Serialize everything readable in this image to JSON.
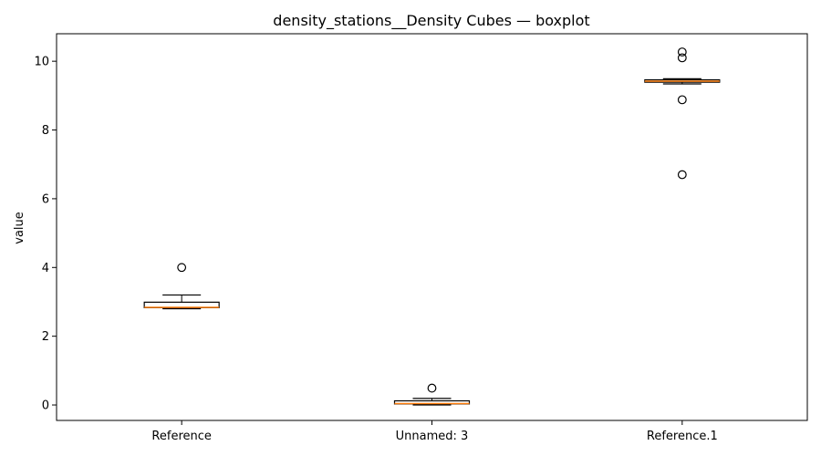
{
  "chart_data": {
    "type": "boxplot",
    "title": "density_stations__Density Cubes — boxplot",
    "xlabel": "",
    "ylabel": "value",
    "ylim": [
      -0.45,
      10.8
    ],
    "yticks": [
      0,
      2,
      4,
      6,
      8,
      10
    ],
    "grid": false,
    "categories": [
      "Reference",
      "Unnamed: 3",
      "Reference.1"
    ],
    "boxes": [
      {
        "category": "Reference",
        "whisker_low": 2.8,
        "q1": 2.83,
        "median": 2.84,
        "q3": 2.99,
        "whisker_high": 3.2,
        "outliers": [
          4.0
        ]
      },
      {
        "category": "Unnamed: 3",
        "whisker_low": 0.0,
        "q1": 0.03,
        "median": 0.04,
        "q3": 0.12,
        "whisker_high": 0.19,
        "outliers": [
          0.49
        ]
      },
      {
        "category": "Reference.1",
        "whisker_low": 9.34,
        "q1": 9.39,
        "median": 9.42,
        "q3": 9.46,
        "whisker_high": 9.49,
        "outliers": [
          10.1,
          10.27,
          8.88,
          6.7
        ]
      }
    ],
    "colors": {
      "box": "#000000",
      "median": "#ff7f0e",
      "outlier": "#000000"
    }
  }
}
